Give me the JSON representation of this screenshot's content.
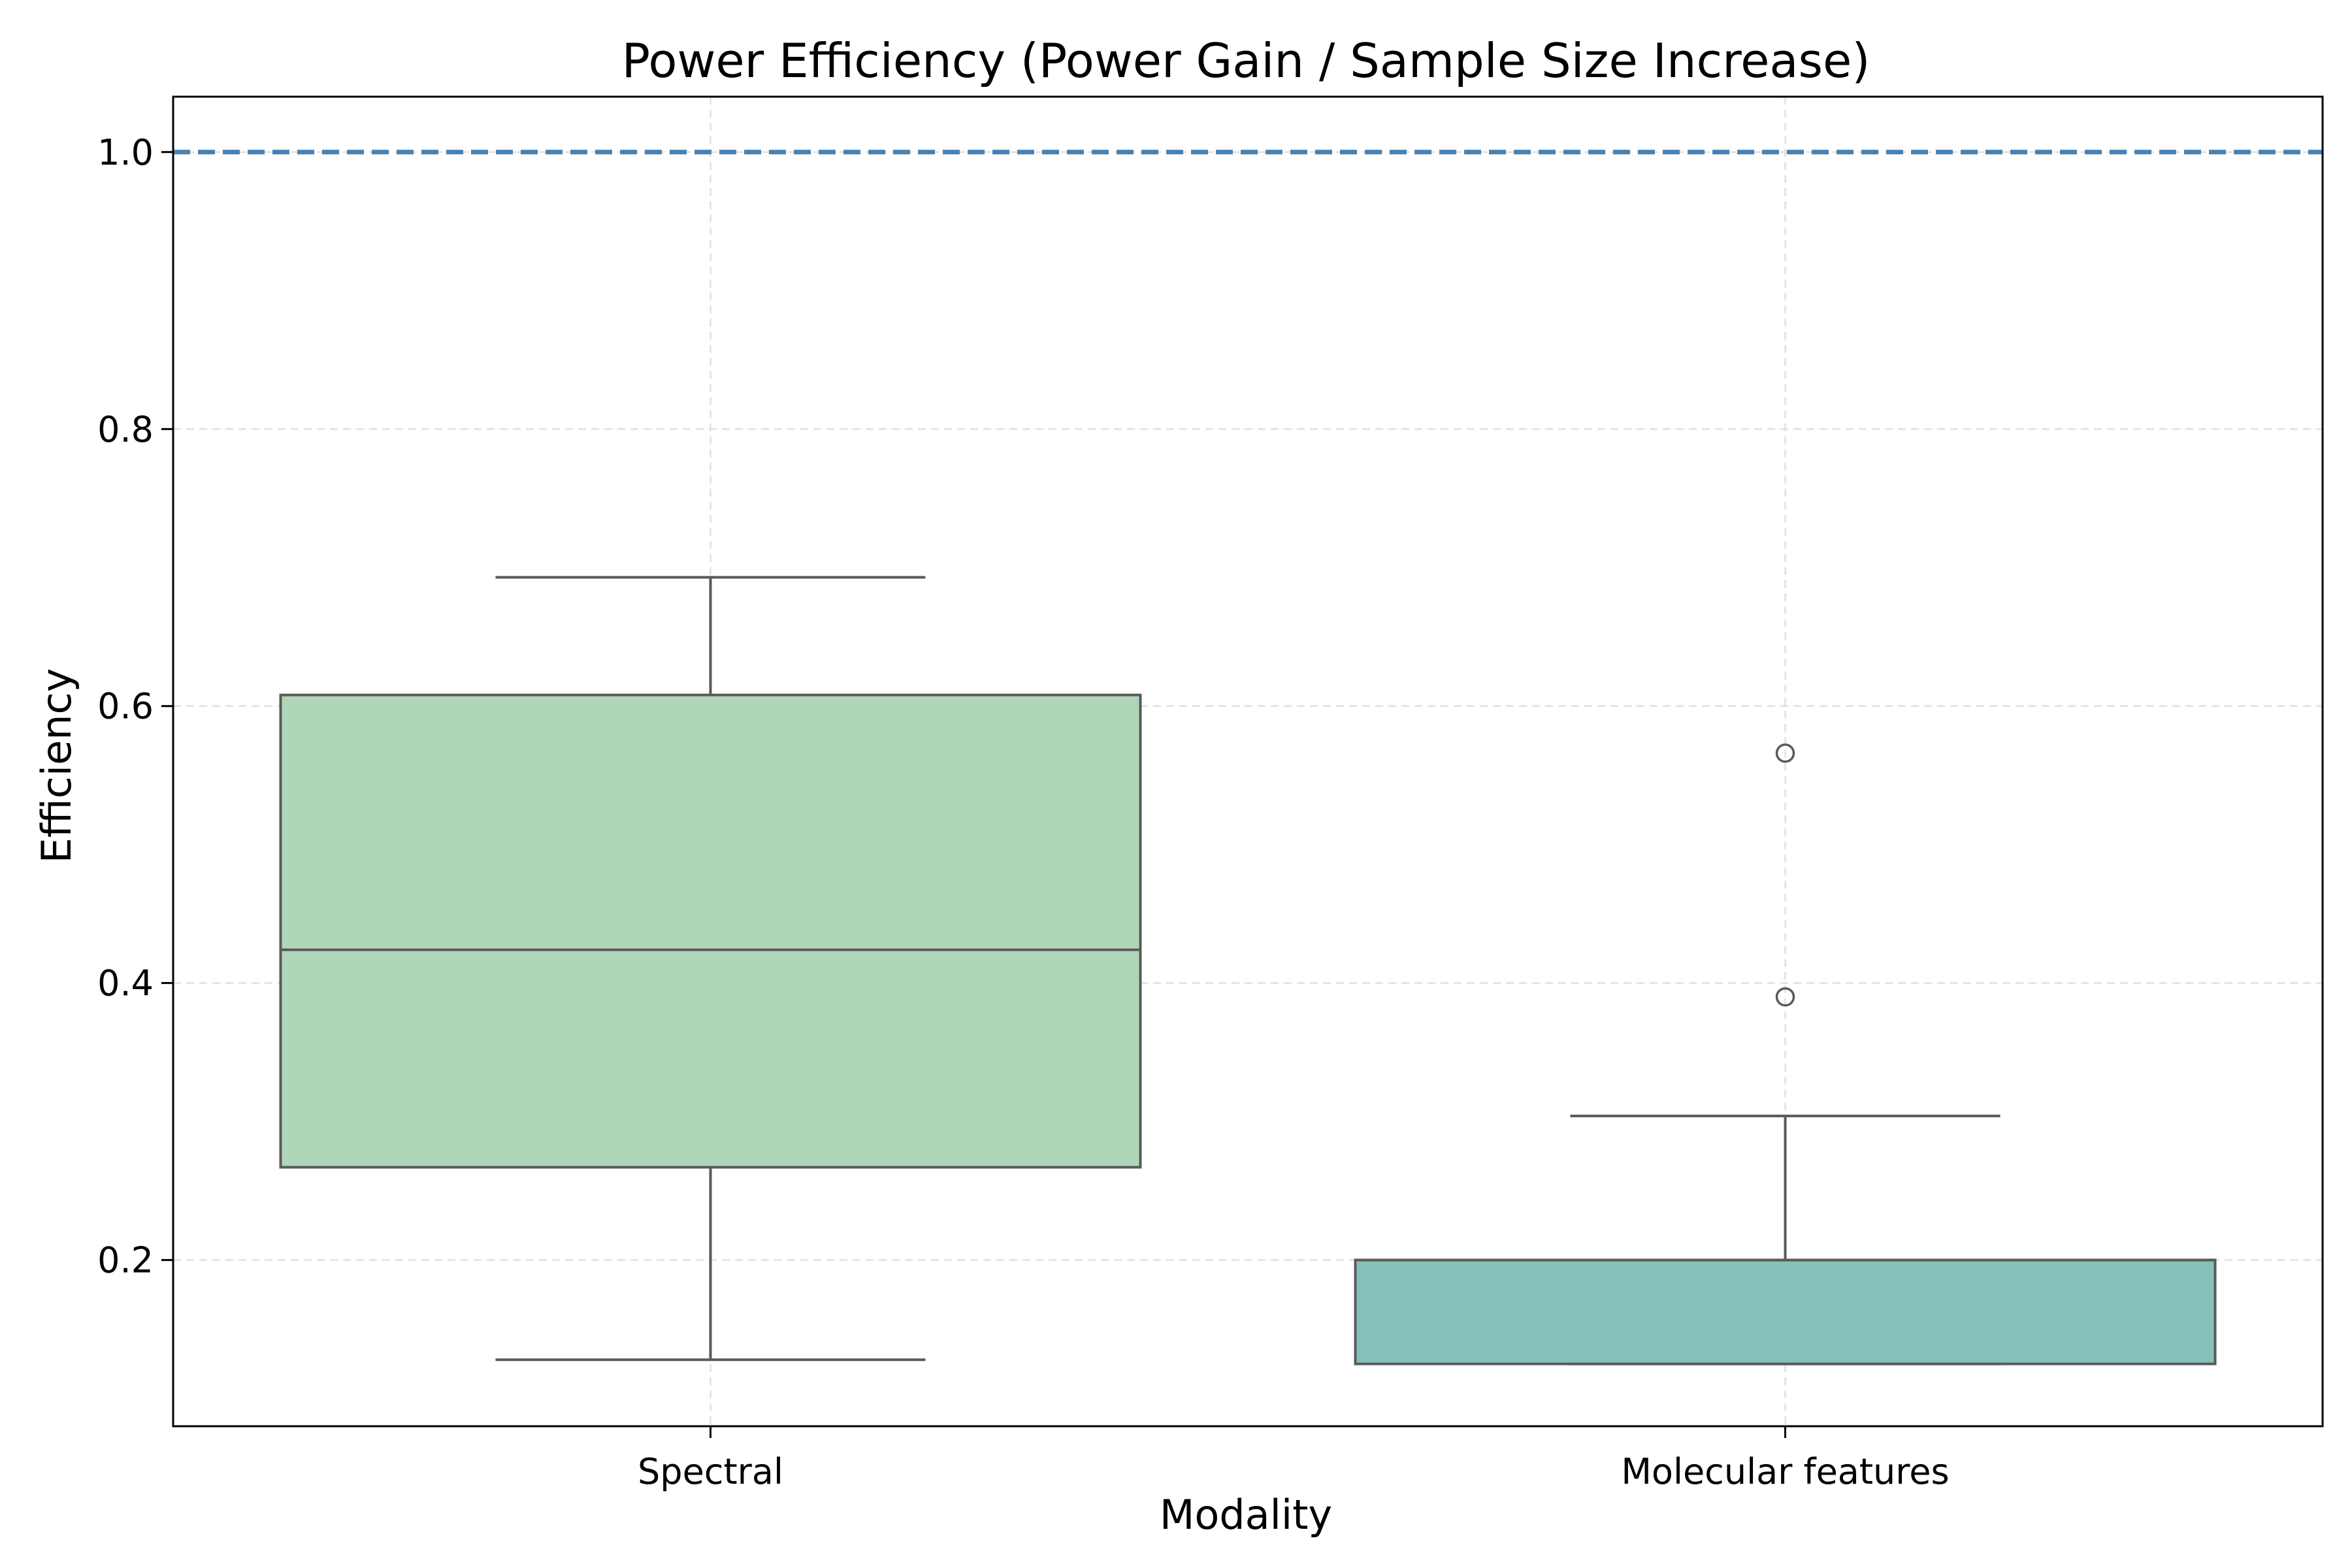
{
  "chart_data": {
    "type": "box",
    "title": "Power Efficiency (Power Gain / Sample Size Increase)",
    "xlabel": "Modality",
    "ylabel": "Efficiency",
    "ylim": [
      0.08,
      1.04
    ],
    "yticks": [
      0.2,
      0.4,
      0.6,
      0.8,
      1.0
    ],
    "ytick_labels": [
      "0.2",
      "0.4",
      "0.6",
      "0.8",
      "1.0"
    ],
    "grid": true,
    "reference_line": {
      "y": 1.0,
      "style": "dashed",
      "color": "#4682b4"
    },
    "categories": [
      "Spectral",
      "Molecular features"
    ],
    "boxes": [
      {
        "name": "Spectral",
        "whisker_low": 0.128,
        "q1": 0.267,
        "median": 0.424,
        "q3": 0.608,
        "whisker_high": 0.693,
        "outliers": [],
        "color": "#afd6b9"
      },
      {
        "name": "Molecular features",
        "whisker_low": 0.125,
        "q1": 0.125,
        "median": 0.2,
        "q3": 0.2,
        "whisker_high": 0.304,
        "outliers": [
          0.39,
          0.566
        ],
        "color": "#85c1ba"
      }
    ]
  }
}
